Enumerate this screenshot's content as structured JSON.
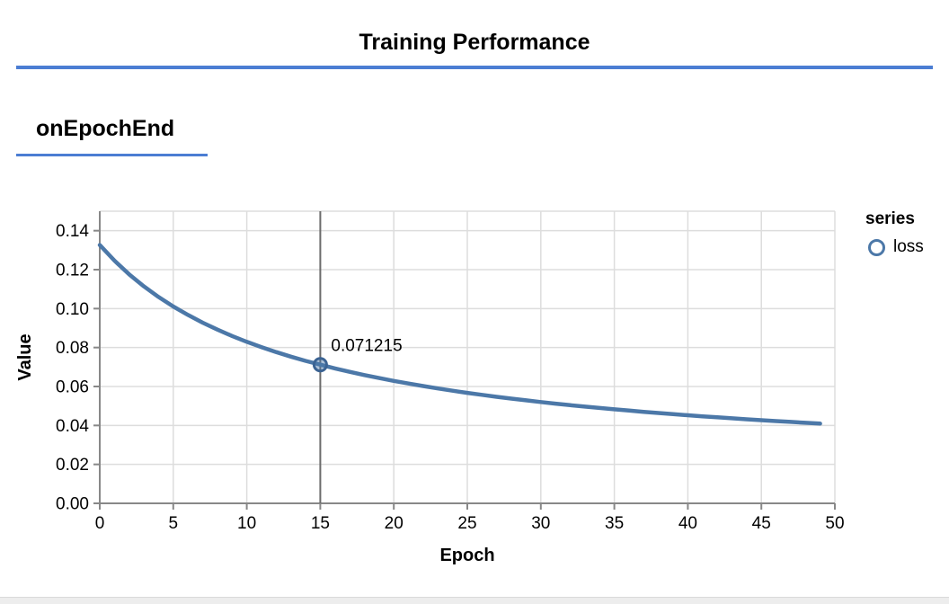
{
  "header": {
    "title": "Training Performance"
  },
  "section": {
    "title": "onEpochEnd"
  },
  "colors": {
    "accent_rule": "#4b7dd3",
    "line": "#4c78a8",
    "marker_stroke": "#3b6393",
    "marker_fill": "rgba(76,120,168,0.45)",
    "hover_rule": "#6b6b6b",
    "grid": "#dddddd",
    "axis": "#888888",
    "label": "#000000"
  },
  "chart_data": {
    "type": "line",
    "title": "",
    "xlabel": "Epoch",
    "ylabel": "Value",
    "xlim": [
      0,
      50
    ],
    "ylim": [
      0,
      0.15
    ],
    "x_ticks": [
      0,
      5,
      10,
      15,
      20,
      25,
      30,
      35,
      40,
      45,
      50
    ],
    "y_ticks": [
      0,
      0.02,
      0.04,
      0.06,
      0.08,
      0.1,
      0.12,
      0.14
    ],
    "grid": true,
    "legend": {
      "title": "series",
      "position": "right",
      "entries": [
        {
          "label": "loss",
          "color": "#4c78a8"
        }
      ]
    },
    "highlight": {
      "epoch": 15,
      "value": 0.071215,
      "label": "0.071215"
    },
    "series": [
      {
        "name": "loss",
        "x": [
          0,
          1,
          2,
          3,
          4,
          5,
          6,
          7,
          8,
          9,
          10,
          11,
          12,
          13,
          14,
          15,
          16,
          17,
          18,
          19,
          20,
          21,
          22,
          23,
          24,
          25,
          26,
          27,
          28,
          29,
          30,
          31,
          32,
          33,
          34,
          35,
          36,
          37,
          38,
          39,
          40,
          41,
          42,
          43,
          44,
          45,
          46,
          47,
          48,
          49
        ],
        "values": [
          0.132648,
          0.124603,
          0.117594,
          0.111431,
          0.10597,
          0.101099,
          0.096725,
          0.092777,
          0.089196,
          0.085933,
          0.082946,
          0.080203,
          0.077675,
          0.075336,
          0.073168,
          0.071215,
          0.069272,
          0.067515,
          0.065869,
          0.064325,
          0.062873,
          0.061504,
          0.060213,
          0.058993,
          0.057837,
          0.056742,
          0.055701,
          0.054712,
          0.053771,
          0.052874,
          0.052018,
          0.051201,
          0.050419,
          0.049671,
          0.048954,
          0.048267,
          0.047608,
          0.046975,
          0.046366,
          0.045781,
          0.045217,
          0.044674,
          0.044151,
          0.043646,
          0.043158,
          0.042688,
          0.042233,
          0.041793,
          0.041367,
          0.040956
        ]
      }
    ]
  }
}
